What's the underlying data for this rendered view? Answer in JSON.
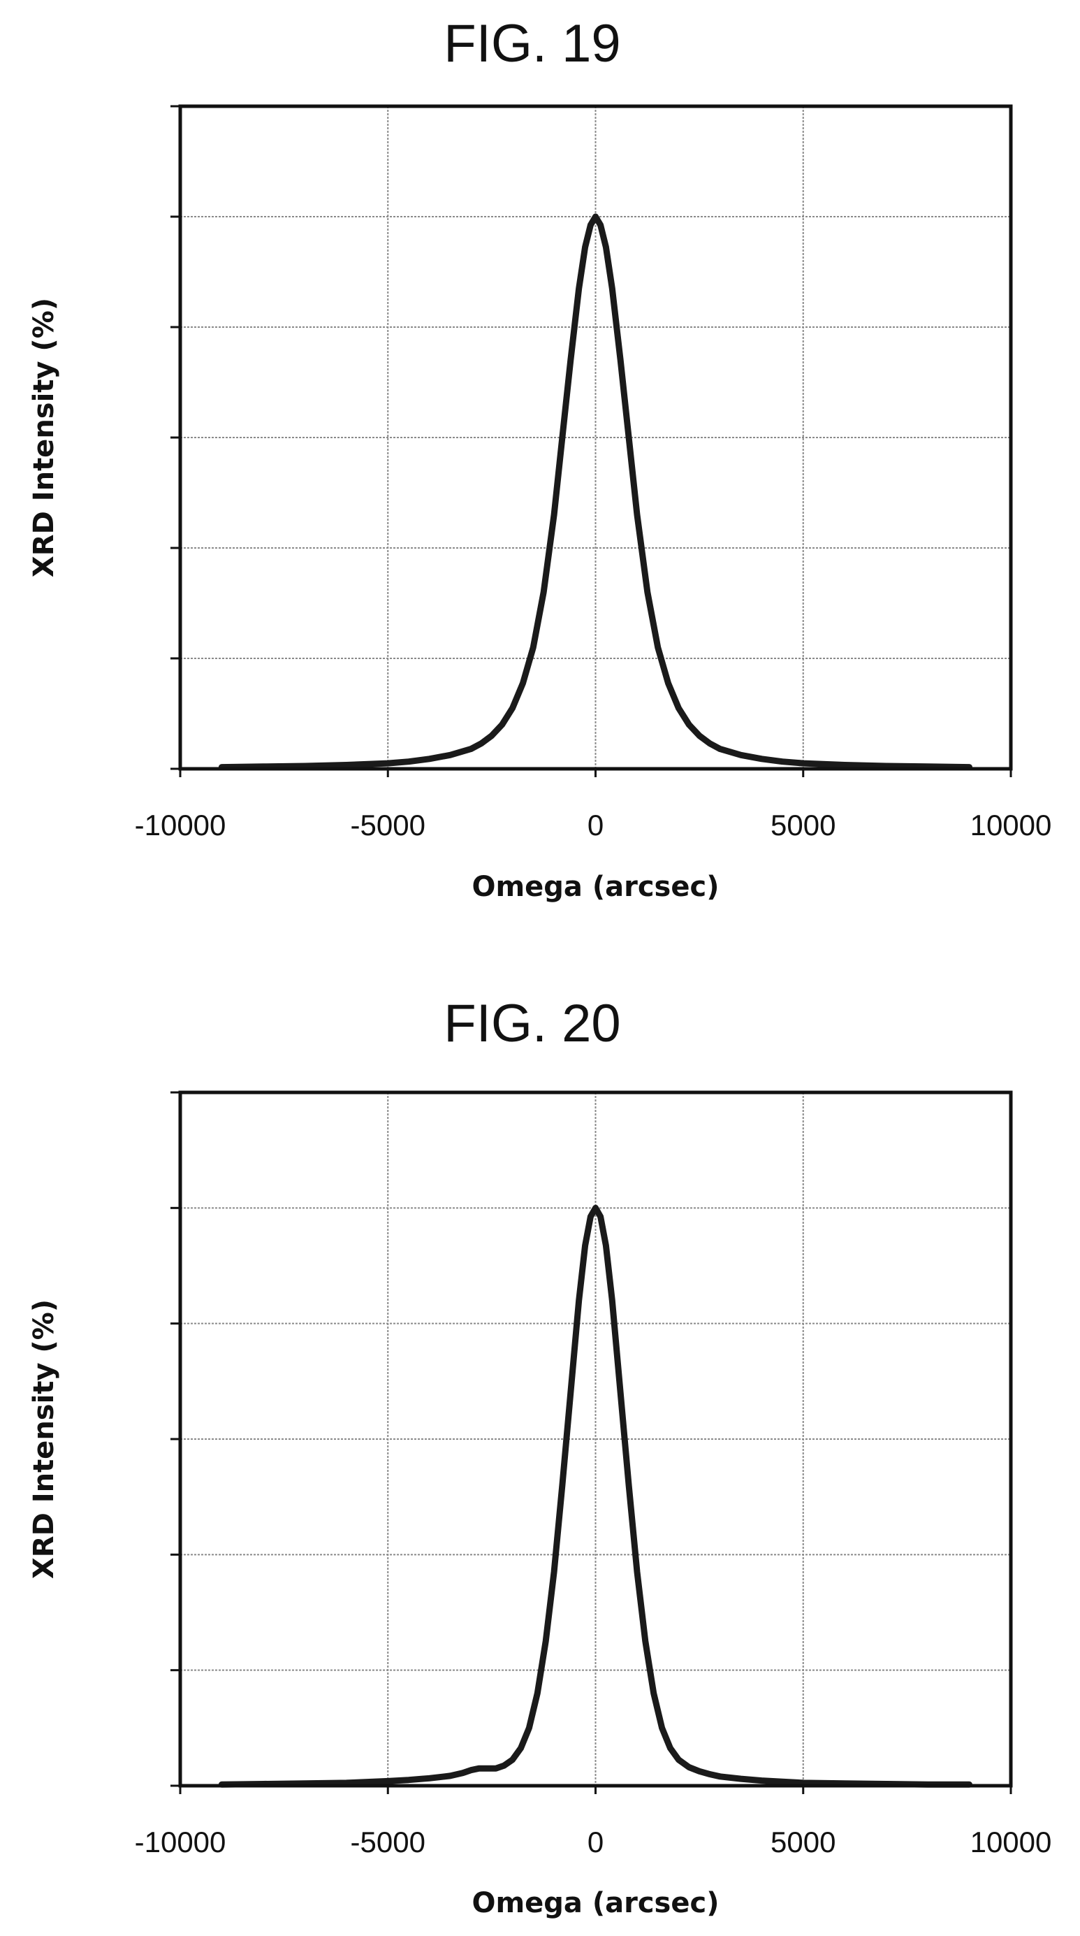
{
  "chart_data": [
    {
      "type": "line",
      "title": "FIG. 19",
      "xlabel": "Omega (arcsec)",
      "ylabel": "XRD Intensity (%)",
      "xlim": [
        -10000,
        10000
      ],
      "ylim": [
        0,
        120
      ],
      "x_ticks": [
        -10000,
        -5000,
        0,
        5000,
        10000
      ],
      "x_tick_labels": [
        "-10000",
        "-5000",
        "0",
        "5000",
        "10000"
      ],
      "y_ticks": [
        0,
        20,
        40,
        60,
        80,
        100,
        120
      ],
      "y_tick_labels": [
        "",
        "",
        "",
        "",
        "",
        "",
        ""
      ],
      "grid": true,
      "series": [
        {
          "x": [
            -9000,
            -8000,
            -7000,
            -6000,
            -5000,
            -4500,
            -4000,
            -3500,
            -3000,
            -2750,
            -2500,
            -2250,
            -2000,
            -1750,
            -1500,
            -1250,
            -1000,
            -800,
            -600,
            -400,
            -250,
            -120,
            0,
            120,
            250,
            400,
            600,
            800,
            1000,
            1250,
            1500,
            1750,
            2000,
            2250,
            2500,
            2750,
            3000,
            3500,
            4000,
            4500,
            5000,
            6000,
            7000,
            8000,
            9000
          ],
          "y": [
            0.3,
            0.4,
            0.5,
            0.7,
            1.0,
            1.3,
            1.8,
            2.5,
            3.6,
            4.6,
            6.0,
            8.0,
            11.0,
            15.5,
            22.0,
            32.0,
            46.0,
            60.0,
            74.0,
            87.0,
            94.5,
            98.5,
            100.0,
            98.5,
            94.5,
            87.0,
            74.0,
            60.0,
            46.0,
            32.0,
            22.0,
            15.5,
            11.0,
            8.0,
            6.0,
            4.6,
            3.6,
            2.5,
            1.8,
            1.3,
            1.0,
            0.7,
            0.5,
            0.4,
            0.3
          ]
        }
      ]
    },
    {
      "type": "line",
      "title": "FIG. 20",
      "xlabel": "Omega (arcsec)",
      "ylabel": "XRD Intensity (%)",
      "xlim": [
        -10000,
        10000
      ],
      "ylim": [
        0,
        120
      ],
      "x_ticks": [
        -10000,
        -5000,
        0,
        5000,
        10000
      ],
      "x_tick_labels": [
        "-10000",
        "-5000",
        "0",
        "5000",
        "10000"
      ],
      "y_ticks": [
        0,
        20,
        40,
        60,
        80,
        100,
        120
      ],
      "y_tick_labels": [
        "",
        "",
        "",
        "",
        "",
        "",
        ""
      ],
      "grid": true,
      "series": [
        {
          "x": [
            -9000,
            -8000,
            -7000,
            -6000,
            -5000,
            -4500,
            -4000,
            -3500,
            -3200,
            -3000,
            -2800,
            -2600,
            -2400,
            -2200,
            -2000,
            -1800,
            -1600,
            -1400,
            -1200,
            -1000,
            -800,
            -600,
            -400,
            -250,
            -120,
            0,
            120,
            250,
            400,
            600,
            800,
            1000,
            1200,
            1400,
            1600,
            1800,
            2000,
            2250,
            2500,
            2750,
            3000,
            3500,
            4000,
            4500,
            5000,
            6000,
            7000,
            8000,
            9000
          ],
          "y": [
            0.2,
            0.3,
            0.4,
            0.5,
            0.8,
            1.0,
            1.3,
            1.7,
            2.2,
            2.7,
            3.0,
            3.0,
            3.0,
            3.5,
            4.5,
            6.5,
            10.0,
            16.0,
            25.0,
            37.0,
            52.0,
            68.0,
            84.0,
            93.5,
            98.5,
            100.0,
            98.5,
            93.5,
            84.0,
            68.0,
            52.0,
            37.0,
            25.0,
            16.0,
            10.0,
            6.5,
            4.5,
            3.2,
            2.5,
            2.0,
            1.6,
            1.2,
            0.9,
            0.7,
            0.5,
            0.4,
            0.3,
            0.2,
            0.2
          ]
        }
      ]
    }
  ]
}
